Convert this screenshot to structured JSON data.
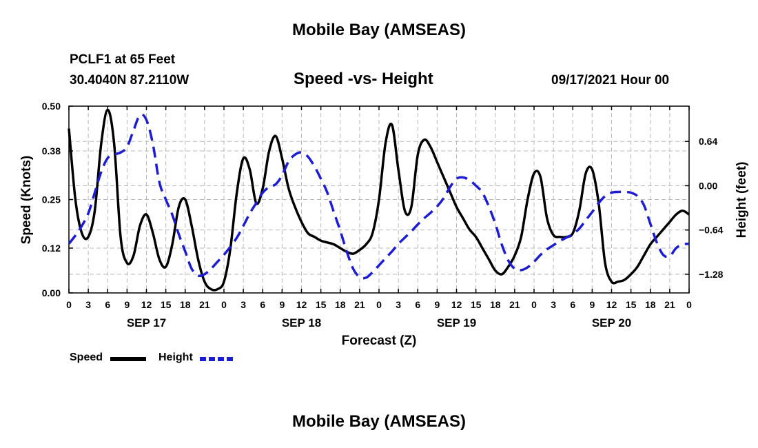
{
  "header": {
    "title": "Mobile Bay (AMSEAS)",
    "station": "PCLF1 at 65 Feet",
    "coords": "30.4040N  87.2110W",
    "subtitle": "Speed -vs- Height",
    "datetime": "09/17/2021 Hour 00"
  },
  "footer": {
    "title": "Mobile Bay (AMSEAS)"
  },
  "legend": {
    "speed_label": "Speed",
    "height_label": "Height"
  },
  "colors": {
    "speed": "#000000",
    "height": "#1c1cd6",
    "grid": "#b8b8b8"
  },
  "chart_data": {
    "type": "line",
    "title": "Speed -vs- Height",
    "xlabel": "Forecast (Z)",
    "ylabel_left": "Speed (Knots)",
    "ylabel_right": "Height (feet)",
    "x_range_hours": [
      0,
      96
    ],
    "x_ticks": [
      0,
      3,
      6,
      9,
      12,
      15,
      18,
      21,
      24,
      27,
      30,
      33,
      36,
      39,
      42,
      45,
      48,
      51,
      54,
      57,
      60,
      63,
      66,
      69,
      72,
      75,
      78,
      81,
      84,
      87,
      90,
      93,
      96
    ],
    "x_tick_labels": [
      "0",
      "3",
      "6",
      "9",
      "12",
      "15",
      "18",
      "21",
      "0",
      "3",
      "6",
      "9",
      "12",
      "15",
      "18",
      "21",
      "0",
      "3",
      "6",
      "9",
      "12",
      "15",
      "18",
      "21",
      "0",
      "3",
      "6",
      "9",
      "12",
      "15",
      "18",
      "21",
      "0"
    ],
    "day_labels": [
      {
        "hour": 12,
        "label": "SEP 17"
      },
      {
        "hour": 36,
        "label": "SEP 18"
      },
      {
        "hour": 60,
        "label": "SEP 19"
      },
      {
        "hour": 84,
        "label": "SEP 20"
      }
    ],
    "y_left": {
      "range": [
        0,
        0.5
      ],
      "ticks": [
        0.0,
        0.12,
        0.25,
        0.38,
        0.5
      ],
      "tick_labels": [
        "0.00",
        "0.12",
        "0.25",
        "0.38",
        "0.50"
      ]
    },
    "y_right": {
      "range": [
        -1.55,
        1.15
      ],
      "ticks": [
        -1.28,
        -0.64,
        0.0,
        0.64
      ],
      "tick_labels": [
        "−1.28",
        "−0.64",
        "0.00",
        "0.64"
      ]
    },
    "grid": true,
    "series": [
      {
        "name": "Speed",
        "axis": "left",
        "style": "solid",
        "x": [
          0,
          1,
          2,
          3,
          4,
          5,
          6,
          7,
          8,
          9,
          10,
          11,
          12,
          13,
          14,
          15,
          16,
          17,
          18,
          19,
          20,
          21,
          22,
          23,
          24,
          25,
          26,
          27,
          28,
          29,
          30,
          31,
          32,
          33,
          34,
          35,
          36,
          37,
          38,
          39,
          40,
          41,
          42,
          43,
          44,
          45,
          46,
          47,
          48,
          49,
          50,
          51,
          52,
          53,
          54,
          55,
          56,
          57,
          58,
          59,
          60,
          61,
          62,
          63,
          64,
          65,
          66,
          67,
          68,
          69,
          70,
          71,
          72,
          73,
          74,
          75,
          76,
          77,
          78,
          79,
          80,
          81,
          82,
          83,
          84,
          85,
          86,
          87,
          88,
          89,
          90,
          91,
          92,
          93,
          94,
          95,
          96
        ],
        "values": [
          0.44,
          0.25,
          0.16,
          0.15,
          0.22,
          0.4,
          0.49,
          0.4,
          0.15,
          0.08,
          0.1,
          0.18,
          0.21,
          0.16,
          0.09,
          0.07,
          0.13,
          0.23,
          0.25,
          0.18,
          0.09,
          0.03,
          0.01,
          0.01,
          0.03,
          0.12,
          0.27,
          0.36,
          0.33,
          0.24,
          0.28,
          0.38,
          0.42,
          0.36,
          0.28,
          0.23,
          0.19,
          0.16,
          0.15,
          0.14,
          0.135,
          0.13,
          0.12,
          0.11,
          0.105,
          0.115,
          0.13,
          0.16,
          0.25,
          0.4,
          0.45,
          0.33,
          0.22,
          0.23,
          0.37,
          0.41,
          0.39,
          0.35,
          0.31,
          0.27,
          0.23,
          0.2,
          0.17,
          0.15,
          0.12,
          0.09,
          0.06,
          0.05,
          0.07,
          0.1,
          0.15,
          0.25,
          0.32,
          0.31,
          0.2,
          0.155,
          0.15,
          0.15,
          0.16,
          0.22,
          0.32,
          0.33,
          0.24,
          0.08,
          0.03,
          0.03,
          0.035,
          0.05,
          0.07,
          0.1,
          0.13,
          0.15,
          0.17,
          0.19,
          0.21,
          0.22,
          0.21
        ]
      },
      {
        "name": "Height",
        "axis": "right",
        "style": "dashed",
        "x": [
          0,
          1,
          2,
          3,
          4,
          5,
          6,
          7,
          8,
          9,
          10,
          11,
          12,
          13,
          14,
          15,
          16,
          17,
          18,
          19,
          20,
          21,
          22,
          23,
          24,
          25,
          26,
          27,
          28,
          29,
          30,
          31,
          32,
          33,
          34,
          35,
          36,
          37,
          38,
          39,
          40,
          41,
          42,
          43,
          44,
          45,
          46,
          47,
          48,
          49,
          50,
          51,
          52,
          53,
          54,
          55,
          56,
          57,
          58,
          59,
          60,
          61,
          62,
          63,
          64,
          65,
          66,
          67,
          68,
          69,
          70,
          71,
          72,
          73,
          74,
          75,
          76,
          77,
          78,
          79,
          80,
          81,
          82,
          83,
          84,
          85,
          86,
          87,
          88,
          89,
          90,
          91,
          92,
          93,
          94,
          95,
          96
        ],
        "values": [
          -0.84,
          -0.72,
          -0.58,
          -0.4,
          -0.1,
          0.2,
          0.4,
          0.45,
          0.48,
          0.56,
          0.8,
          1.02,
          0.95,
          0.6,
          0.05,
          -0.2,
          -0.42,
          -0.7,
          -0.95,
          -1.2,
          -1.3,
          -1.28,
          -1.2,
          -1.1,
          -1.0,
          -0.88,
          -0.75,
          -0.58,
          -0.4,
          -0.25,
          -0.1,
          -0.02,
          0.02,
          0.15,
          0.35,
          0.45,
          0.48,
          0.42,
          0.28,
          0.1,
          -0.1,
          -0.38,
          -0.65,
          -0.95,
          -1.2,
          -1.32,
          -1.33,
          -1.25,
          -1.15,
          -1.05,
          -0.95,
          -0.84,
          -0.75,
          -0.66,
          -0.56,
          -0.47,
          -0.39,
          -0.3,
          -0.18,
          -0.02,
          0.1,
          0.12,
          0.08,
          0.0,
          -0.1,
          -0.3,
          -0.55,
          -0.85,
          -1.08,
          -1.2,
          -1.22,
          -1.18,
          -1.1,
          -1.0,
          -0.92,
          -0.86,
          -0.8,
          -0.75,
          -0.7,
          -0.62,
          -0.5,
          -0.38,
          -0.25,
          -0.15,
          -0.1,
          -0.09,
          -0.09,
          -0.1,
          -0.15,
          -0.28,
          -0.55,
          -0.82,
          -1.0,
          -1.02,
          -0.9,
          -0.85,
          -0.84
        ]
      }
    ]
  }
}
